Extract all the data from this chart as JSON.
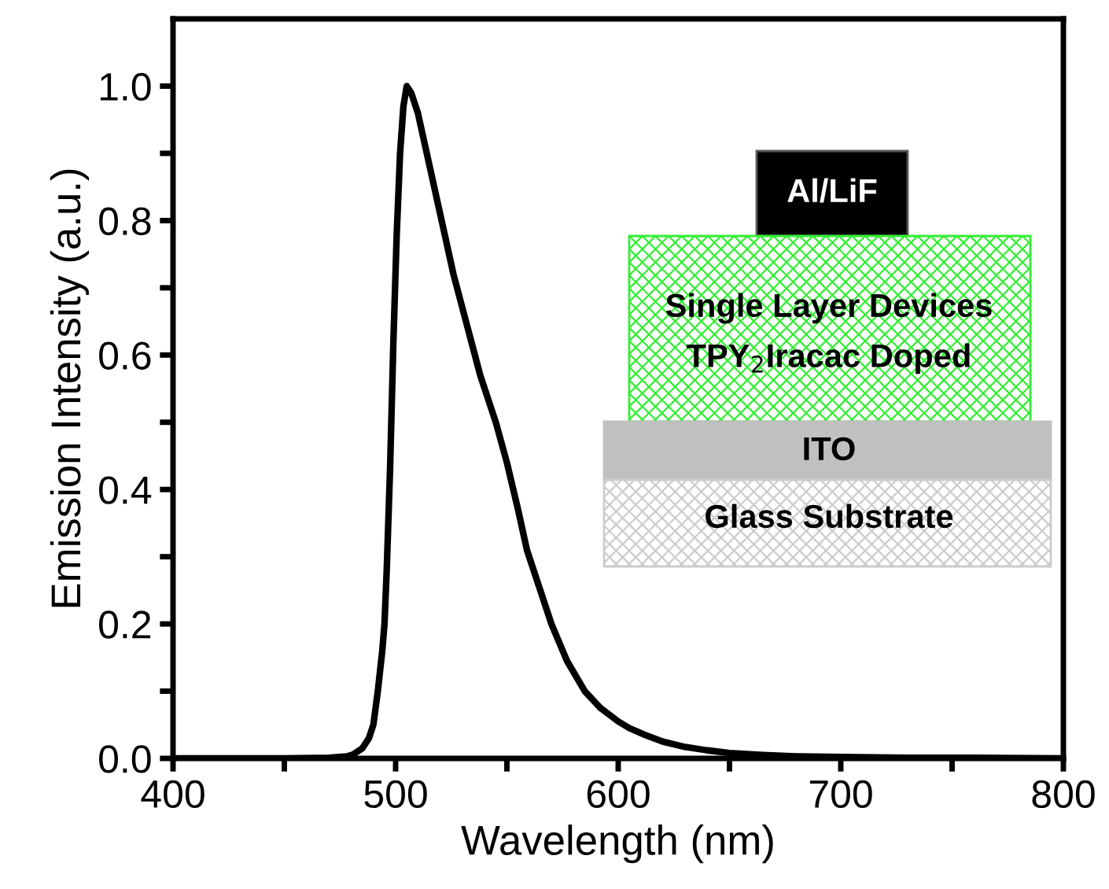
{
  "chart_data": {
    "type": "line",
    "xlabel": "Wavelength (nm)",
    "ylabel": "Emission Intensity (a.u.)",
    "xlim": [
      400,
      800
    ],
    "ylim": [
      0,
      1.1
    ],
    "xticks": [
      400,
      {
        "value": 450,
        "label": null
      },
      500,
      {
        "value": 550,
        "label": null
      },
      600,
      {
        "value": 650,
        "label": null
      },
      700,
      {
        "value": 750,
        "label": null
      },
      800
    ],
    "yticks": [
      {
        "value": 0,
        "label": "0.0"
      },
      {
        "value": 0.1,
        "label": null
      },
      {
        "value": 0.2,
        "label": "0.2"
      },
      {
        "value": 0.3,
        "label": null
      },
      {
        "value": 0.4,
        "label": "0.4"
      },
      {
        "value": 0.5,
        "label": null
      },
      {
        "value": 0.6,
        "label": "0.6"
      },
      {
        "value": 0.7,
        "label": null
      },
      {
        "value": 0.8,
        "label": "0.8"
      },
      {
        "value": 0.9,
        "label": null
      },
      {
        "value": 1.0,
        "label": "1.0"
      }
    ],
    "grid": false,
    "legend": false,
    "marker": "none",
    "line_style": "solid",
    "annotations": [
      "Al/LiF",
      "Single Layer Devices",
      "TPY$_{2}$Iracac Doped",
      "ITO",
      "Glass Substrate"
    ],
    "series": [
      {
        "color": "#000000",
        "x": [
          400,
          450,
          470,
          478,
          481,
          485,
          488,
          490,
          492,
          494,
          495,
          496,
          497.5,
          499,
          500.5,
          502,
          503.5,
          505,
          507,
          510,
          514,
          518,
          522,
          526,
          530,
          534,
          538,
          542,
          545,
          550,
          555,
          559,
          565,
          570,
          577,
          585,
          592,
          600,
          605,
          612,
          620,
          630,
          640,
          650,
          665,
          680,
          700,
          730,
          760,
          800
        ],
        "values": [
          0,
          0,
          0.001,
          0.003,
          0.006,
          0.015,
          0.03,
          0.05,
          0.1,
          0.16,
          0.2,
          0.28,
          0.43,
          0.62,
          0.78,
          0.9,
          0.97,
          1.0,
          0.99,
          0.96,
          0.9,
          0.84,
          0.78,
          0.72,
          0.67,
          0.62,
          0.57,
          0.53,
          0.5,
          0.44,
          0.37,
          0.31,
          0.25,
          0.2,
          0.145,
          0.1,
          0.075,
          0.055,
          0.045,
          0.035,
          0.025,
          0.017,
          0.012,
          0.008,
          0.005,
          0.003,
          0.002,
          0.001,
          0.001,
          0
        ]
      }
    ]
  }
}
